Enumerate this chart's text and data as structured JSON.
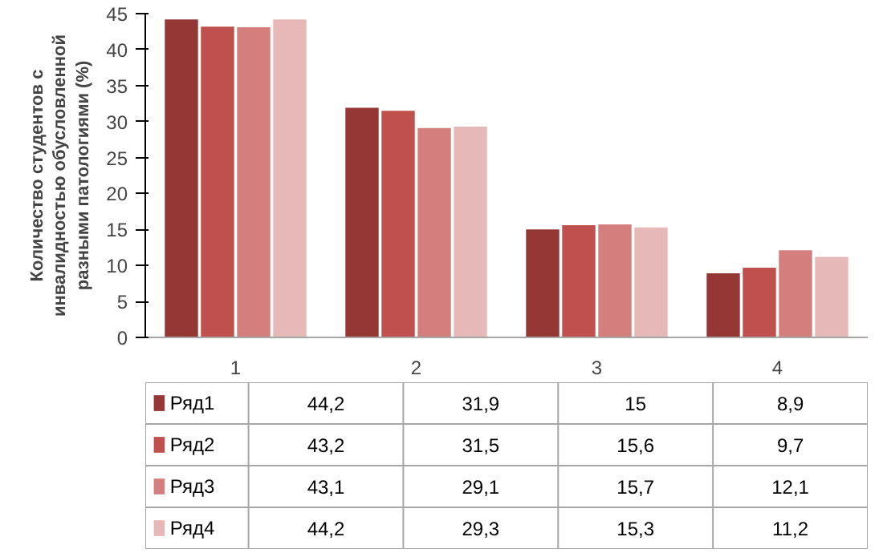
{
  "chart_data": {
    "type": "bar",
    "ylabel": "Количество студентов с инвалидностью обусловленной разными патологиями (%)",
    "categories": [
      "1",
      "2",
      "3",
      "4"
    ],
    "series": [
      {
        "name": "Ряд1",
        "color": "#953735",
        "values": [
          44.2,
          31.9,
          15,
          8.9
        ],
        "value_labels": [
          "44,2",
          "31,9",
          "15",
          "8,9"
        ]
      },
      {
        "name": "Ряд2",
        "color": "#c0504d",
        "values": [
          43.2,
          31.5,
          15.6,
          9.7
        ],
        "value_labels": [
          "43,2",
          "31,5",
          "15,6",
          "9,7"
        ]
      },
      {
        "name": "Ряд3",
        "color": "#d47f7e",
        "values": [
          43.1,
          29.1,
          15.7,
          12.1
        ],
        "value_labels": [
          "43,1",
          "29,1",
          "15,7",
          "12,1"
        ]
      },
      {
        "name": "Ряд4",
        "color": "#e6b9b8",
        "values": [
          44.2,
          29.3,
          15.3,
          11.2
        ],
        "value_labels": [
          "44,2",
          "29,3",
          "15,3",
          "11,2"
        ]
      }
    ],
    "ylim": [
      0,
      45
    ],
    "yticks": [
      0,
      5,
      10,
      15,
      20,
      25,
      30,
      35,
      40,
      45
    ],
    "grid": false,
    "legend": "bottom"
  }
}
